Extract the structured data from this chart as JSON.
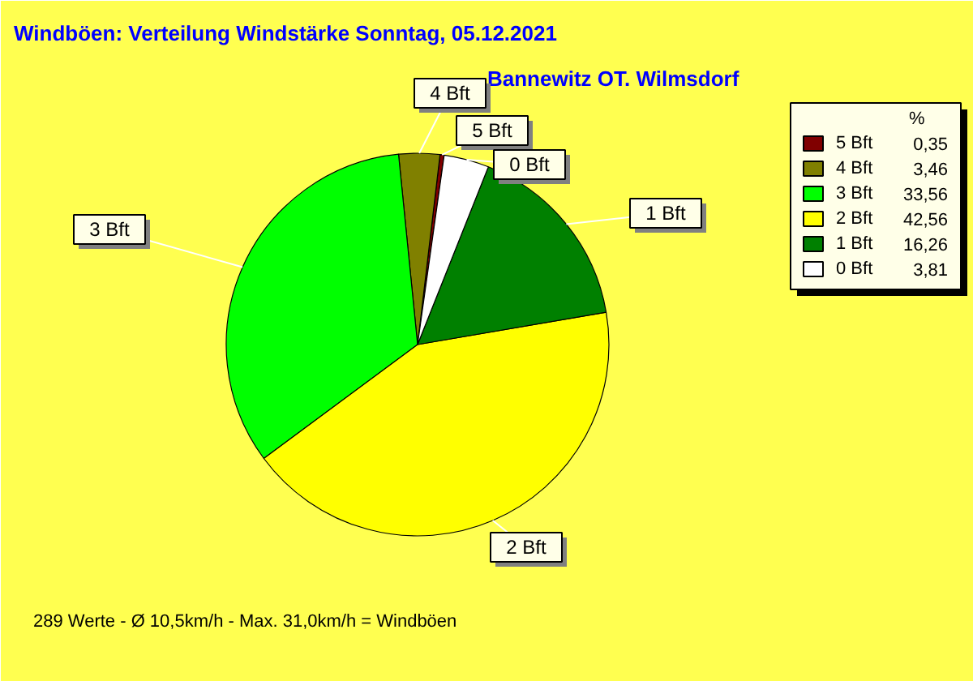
{
  "chart_data": {
    "type": "pie",
    "title": "Windböen: Verteilung Windstärke  Sonntag, 05.12.2021",
    "subtitle": "Bannewitz OT. Wilmsdorf",
    "categories": [
      "5 Bft",
      "4 Bft",
      "3 Bft",
      "2 Bft",
      "1 Bft",
      "0 Bft"
    ],
    "values": [
      0.35,
      3.46,
      33.56,
      42.56,
      16.26,
      3.81
    ],
    "value_labels": [
      "0,35",
      "3,46",
      "33,56",
      "42,56",
      "16,26",
      "3,81"
    ],
    "colors": [
      "#800000",
      "#808000",
      "#00ff00",
      "#ffff00",
      "#008000",
      "#ffffff"
    ],
    "legend_title": "%",
    "legend": "top right",
    "annotations": [
      "289 Werte   -   Ø 10,5km/h  -  Max. 31,0km/h = Windböen"
    ]
  }
}
